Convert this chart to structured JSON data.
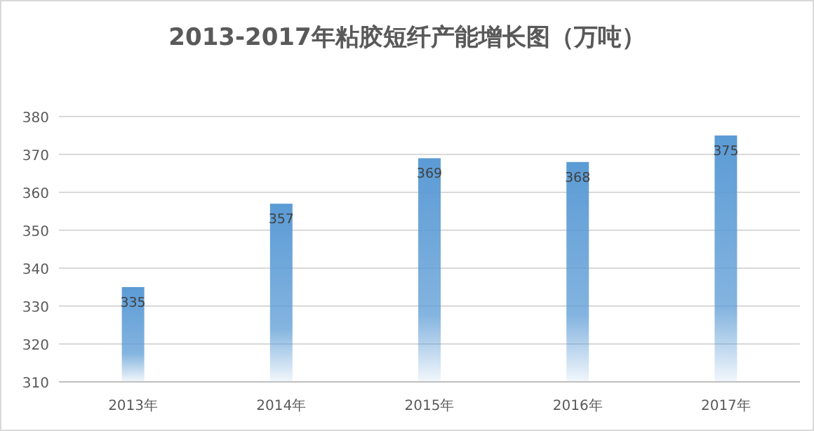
{
  "chart_data": {
    "type": "bar",
    "title": "2013-2017年粘胶短纤产能增长图（万吨）",
    "categories": [
      "2013年",
      "2014年",
      "2015年",
      "2016年",
      "2017年"
    ],
    "values": [
      335,
      357,
      369,
      368,
      375
    ],
    "color": "#5b9bd5",
    "ylim": [
      310,
      380
    ],
    "yticks": [
      310,
      320,
      330,
      340,
      350,
      360,
      370,
      380
    ],
    "grid": "y",
    "data_labels": true
  }
}
